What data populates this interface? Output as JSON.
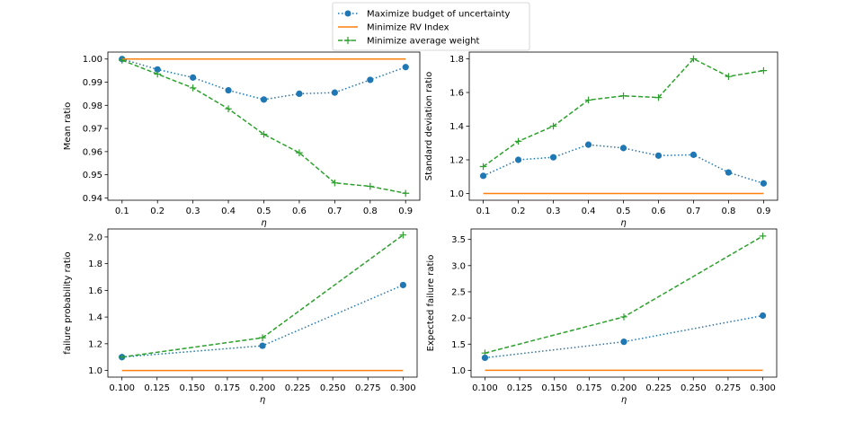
{
  "legend": [
    {
      "label": "Maximize budget of uncertainty",
      "color": "#1f77b4",
      "linestyle": "dotted",
      "marker": "circle"
    },
    {
      "label": "Minimize RV Index",
      "color": "#ff7f0e",
      "linestyle": "solid",
      "marker": "none"
    },
    {
      "label": "Minimize average weight",
      "color": "#2ca02c",
      "linestyle": "dashed",
      "marker": "plus"
    }
  ],
  "chart_data": [
    {
      "type": "line",
      "xlabel": "η",
      "ylabel": "Mean ratio",
      "x": [
        0.1,
        0.2,
        0.3,
        0.4,
        0.5,
        0.6,
        0.7,
        0.8,
        0.9
      ],
      "xticks": [
        "0.1",
        "0.2",
        "0.3",
        "0.4",
        "0.5",
        "0.6",
        "0.7",
        "0.8",
        "0.9"
      ],
      "yticks": [
        "0.94",
        "0.95",
        "0.96",
        "0.97",
        "0.98",
        "0.99",
        "1.00"
      ],
      "xlim": [
        0.06,
        0.94
      ],
      "ylim": [
        0.939,
        1.003
      ],
      "series": [
        {
          "name": "Maximize budget of uncertainty",
          "values": [
            1.0,
            0.9955,
            0.992,
            0.9865,
            0.9825,
            0.985,
            0.9855,
            0.991,
            0.9965
          ]
        },
        {
          "name": "Minimize RV Index",
          "values": [
            1.0,
            1.0,
            1.0,
            1.0,
            1.0,
            1.0,
            1.0,
            1.0,
            1.0
          ]
        },
        {
          "name": "Minimize average weight",
          "values": [
            0.9995,
            0.9935,
            0.9875,
            0.9785,
            0.9675,
            0.9595,
            0.9465,
            0.945,
            0.942
          ]
        }
      ]
    },
    {
      "type": "line",
      "xlabel": "η",
      "ylabel": "Standard deviation ratio",
      "x": [
        0.1,
        0.2,
        0.3,
        0.4,
        0.5,
        0.6,
        0.7,
        0.8,
        0.9
      ],
      "xticks": [
        "0.1",
        "0.2",
        "0.3",
        "0.4",
        "0.5",
        "0.6",
        "0.7",
        "0.8",
        "0.9"
      ],
      "yticks": [
        "1.0",
        "1.2",
        "1.4",
        "1.6",
        "1.8"
      ],
      "xlim": [
        0.06,
        0.94
      ],
      "ylim": [
        0.96,
        1.84
      ],
      "series": [
        {
          "name": "Maximize budget of uncertainty",
          "values": [
            1.105,
            1.2,
            1.215,
            1.29,
            1.27,
            1.225,
            1.23,
            1.125,
            1.06
          ]
        },
        {
          "name": "Minimize RV Index",
          "values": [
            1.0,
            1.0,
            1.0,
            1.0,
            1.0,
            1.0,
            1.0,
            1.0,
            1.0
          ]
        },
        {
          "name": "Minimize average weight",
          "values": [
            1.16,
            1.31,
            1.4,
            1.555,
            1.58,
            1.57,
            1.8,
            1.695,
            1.73
          ]
        }
      ]
    },
    {
      "type": "line",
      "xlabel": "η",
      "ylabel": "failure probability ratio",
      "x": [
        0.1,
        0.2,
        0.3
      ],
      "xticks": [
        "0.100",
        "0.125",
        "0.150",
        "0.175",
        "0.200",
        "0.225",
        "0.250",
        "0.275",
        "0.300"
      ],
      "yticks": [
        "1.0",
        "1.2",
        "1.4",
        "1.6",
        "1.8",
        "2.0"
      ],
      "xlim": [
        0.09,
        0.31
      ],
      "ylim": [
        0.95,
        2.06
      ],
      "series": [
        {
          "name": "Maximize budget of uncertainty",
          "values": [
            1.1,
            1.185,
            1.64
          ]
        },
        {
          "name": "Minimize RV Index",
          "values": [
            1.0,
            1.0,
            1.0
          ]
        },
        {
          "name": "Minimize average weight",
          "values": [
            1.1,
            1.245,
            2.015
          ]
        }
      ]
    },
    {
      "type": "line",
      "xlabel": "η",
      "ylabel": "Expected failure ratio",
      "x": [
        0.1,
        0.2,
        0.3
      ],
      "xticks": [
        "0.100",
        "0.125",
        "0.150",
        "0.175",
        "0.200",
        "0.225",
        "0.250",
        "0.275",
        "0.300"
      ],
      "yticks": [
        "1.0",
        "1.5",
        "2.0",
        "2.5",
        "3.0",
        "3.5"
      ],
      "xlim": [
        0.09,
        0.31
      ],
      "ylim": [
        0.87,
        3.7
      ],
      "series": [
        {
          "name": "Maximize budget of uncertainty",
          "values": [
            1.24,
            1.545,
            2.045
          ]
        },
        {
          "name": "Minimize RV Index",
          "values": [
            1.0,
            1.0,
            1.0
          ]
        },
        {
          "name": "Minimize average weight",
          "values": [
            1.33,
            2.02,
            3.565
          ]
        }
      ]
    }
  ]
}
